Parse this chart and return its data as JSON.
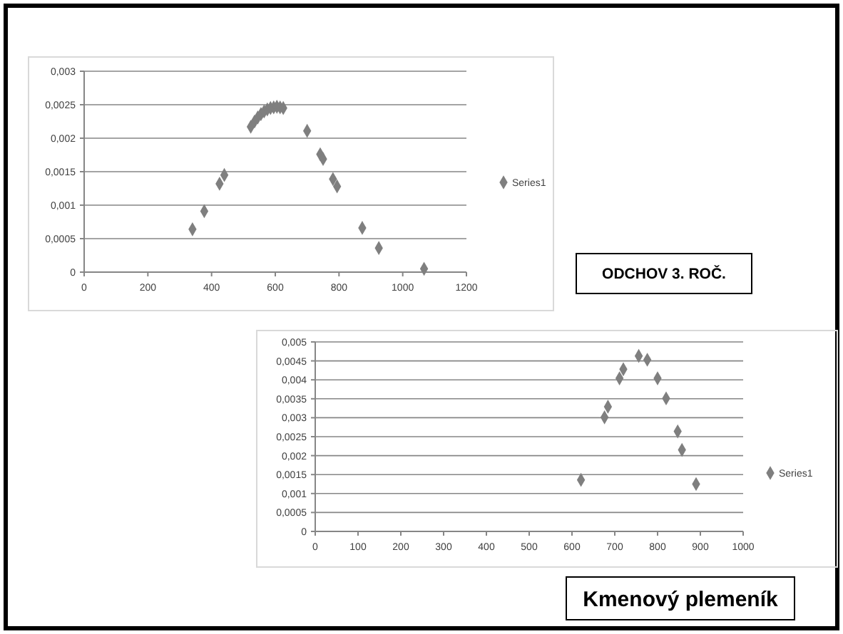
{
  "chart_data": [
    {
      "type": "scatter",
      "annotations": [
        "ODCHOV 3. ROČ."
      ],
      "legend": "right",
      "grid": "y",
      "marker": "diamond",
      "xlim": [
        0,
        1200
      ],
      "xticks": [
        0,
        200,
        400,
        600,
        800,
        1000,
        1200
      ],
      "ylim": [
        0,
        0.003
      ],
      "yticks": [
        0,
        {
          "value": 0.0005,
          "label": "0,0005"
        },
        {
          "value": 0.001,
          "label": "0,001"
        },
        {
          "value": 0.0015,
          "label": "0,0015"
        },
        {
          "value": 0.002,
          "label": "0,002"
        },
        {
          "value": 0.0025,
          "label": "0,0025"
        },
        {
          "value": 0.003,
          "label": "0,003"
        }
      ],
      "series": [
        {
          "name": "Series1",
          "color": "#7f7f7f",
          "x": [
            340,
            377,
            425,
            440,
            523,
            535,
            545,
            555,
            565,
            575,
            585,
            595,
            605,
            615,
            625,
            700,
            741,
            750,
            781,
            794,
            873,
            925,
            1067
          ],
          "values": [
            0.00064,
            0.00091,
            0.00132,
            0.00145,
            0.00217,
            0.00225,
            0.00231,
            0.00236,
            0.0024,
            0.00243,
            0.00245,
            0.00246,
            0.00247,
            0.00246,
            0.00245,
            0.00211,
            0.00176,
            0.00169,
            0.00139,
            0.00128,
            0.00066,
            0.00036,
            5e-05
          ]
        }
      ]
    },
    {
      "type": "scatter",
      "annotations": [
        "Kmenový plemeník"
      ],
      "legend": "right",
      "grid": "y",
      "marker": "diamond",
      "xlim": [
        0,
        1000
      ],
      "xticks": [
        0,
        100,
        200,
        300,
        400,
        500,
        600,
        700,
        800,
        900,
        1000
      ],
      "ylim": [
        0,
        0.005
      ],
      "yticks": [
        0,
        {
          "value": 0.0005,
          "label": "0,0005"
        },
        {
          "value": 0.001,
          "label": "0,001"
        },
        {
          "value": 0.0015,
          "label": "0,0015"
        },
        {
          "value": 0.002,
          "label": "0,002"
        },
        {
          "value": 0.0025,
          "label": "0,0025"
        },
        {
          "value": 0.003,
          "label": "0,003"
        },
        {
          "value": 0.0035,
          "label": "0,0035"
        },
        {
          "value": 0.004,
          "label": "0,004"
        },
        {
          "value": 0.0045,
          "label": "0,0045"
        },
        {
          "value": 0.005,
          "label": "0,005"
        }
      ],
      "series": [
        {
          "name": "Series1",
          "color": "#7f7f7f",
          "x": [
            621,
            676,
            684,
            711,
            720,
            756,
            776,
            800,
            820,
            847,
            857,
            890
          ],
          "values": [
            0.00136,
            0.00301,
            0.00329,
            0.00404,
            0.00428,
            0.00463,
            0.00453,
            0.00404,
            0.00351,
            0.00264,
            0.00215,
            0.00125
          ]
        }
      ]
    }
  ]
}
